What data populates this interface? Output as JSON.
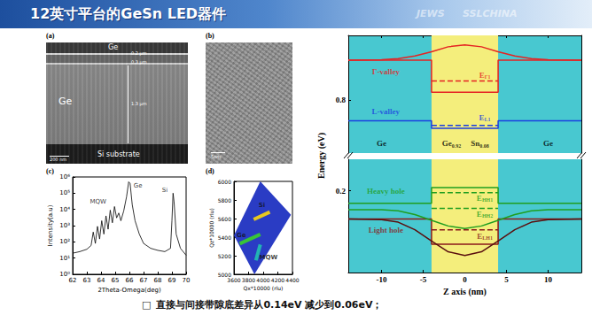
{
  "header": {
    "title": "12英寸平台的GeSn LED器件",
    "watermarks": [
      "JEWS",
      "SSLCHINA"
    ]
  },
  "panels": {
    "a": {
      "label": "(a)",
      "layer_top": "Ge",
      "layer_main": "Ge",
      "substrate": "Si substrate",
      "thickness": [
        "0.2 μm",
        "0.3 μm",
        "1.3 μm"
      ],
      "scale_bar": "200 nm"
    },
    "b": {
      "label": "(b)",
      "scale_bar": "5nm"
    },
    "c": {
      "label": "(c)"
    },
    "d": {
      "label": "(d)"
    }
  },
  "chart_data": [
    {
      "type": "line",
      "xlabel": "2Theta-Omega(deg)",
      "ylabel": "Intensity(a.u)",
      "log": "y",
      "color": "#000000",
      "grid": false,
      "x": [
        62,
        62.5,
        63,
        63.3,
        63.45,
        63.6,
        63.75,
        63.9,
        64.05,
        64.2,
        64.35,
        64.5,
        64.65,
        64.8,
        64.95,
        65.1,
        65.25,
        65.4,
        65.6,
        65.8,
        65.95,
        66.05,
        66.2,
        66.4,
        66.7,
        67,
        67.5,
        68,
        68.5,
        68.9,
        69,
        69.08,
        69.15,
        69.3,
        69.6,
        70
      ],
      "values": [
        20,
        25,
        35,
        60,
        400,
        80,
        900,
        150,
        2000,
        300,
        4000,
        600,
        9000,
        1500,
        15000,
        3000,
        6000,
        2000,
        8000,
        60000,
        500000,
        400000,
        20000,
        2000,
        300,
        80,
        40,
        30,
        25,
        40,
        2000,
        100000,
        30000,
        300,
        40,
        15
      ],
      "xlim": [
        62,
        70
      ],
      "xticks": [
        62,
        63,
        64,
        65,
        66,
        67,
        68,
        69,
        70
      ],
      "ylim": [
        1,
        1000000
      ],
      "yticks": [
        {
          "value": 1,
          "label": "10⁰"
        },
        {
          "value": 10,
          "label": "10¹"
        },
        {
          "value": 100,
          "label": "10²"
        },
        {
          "value": 1000,
          "label": "10³"
        },
        {
          "value": 10000,
          "label": "10⁴"
        },
        {
          "value": 100000,
          "label": "10⁵"
        },
        {
          "value": 1000000,
          "label": "10⁶"
        }
      ],
      "annotations": [
        {
          "text": "MQW",
          "x": 63.8,
          "y": 30000
        },
        {
          "text": "Ge",
          "x": 66.6,
          "y": 300000
        },
        {
          "text": "Si",
          "x": 68.5,
          "y": 150000
        }
      ]
    },
    {
      "type": "map",
      "xlabel": "Qx*10000 (rlu)",
      "ylabel": "Qz*10000 (rlu)",
      "grid": false,
      "xlim": [
        3600,
        4400
      ],
      "xticks": [
        3600,
        3800,
        4000,
        4200,
        4400
      ],
      "ylim": [
        5000,
        6000
      ],
      "yticks": [
        5000,
        5200,
        5400,
        5600,
        5800,
        6000
      ],
      "region": {
        "color": "#2a3cc4",
        "points": [
          [
            3600,
            5420
          ],
          [
            3960,
            6000
          ],
          [
            4380,
            5640
          ],
          [
            3880,
            5000
          ]
        ]
      },
      "features": [
        {
          "text": "Si",
          "color": "#e8c820",
          "points": [
            [
              3870,
              5590
            ],
            [
              4090,
              5670
            ]
          ],
          "x": 3980,
          "y": 5740
        },
        {
          "text": "Ge",
          "color": "#38c438",
          "points": [
            [
              3680,
              5330
            ],
            [
              3960,
              5430
            ]
          ],
          "x": 3700,
          "y": 5420
        },
        {
          "text": "MQW",
          "color": "#22b4b4",
          "points": [
            [
              3900,
              5150
            ],
            [
              3960,
              5320
            ]
          ],
          "x": 4070,
          "y": 5180
        }
      ]
    },
    {
      "type": "band",
      "xlabel": "Z axis (nm)",
      "ylabel": "Energy (eV)",
      "background": "#48c8d0",
      "xlim": [
        -14,
        14
      ],
      "xticks": [
        -10,
        -5,
        0,
        5,
        10
      ],
      "well": {
        "x": [
          -4,
          4
        ],
        "color": "#f4ee7c"
      },
      "panels": [
        {
          "ylim": [
            0.66,
            0.97
          ],
          "yticks": [
            0.8
          ],
          "series": [
            {
              "color": "#e52222",
              "line_style": "solid",
              "points": [
                [
                  -14,
                  0.905
                ],
                [
                  -4,
                  0.905
                ],
                [
                  -4,
                  0.82
                ],
                [
                  4,
                  0.82
                ],
                [
                  4,
                  0.905
                ],
                [
                  14,
                  0.905
                ]
              ]
            },
            {
              "color": "#1a3ee0",
              "line_style": "solid",
              "points": [
                [
                  -14,
                  0.745
                ],
                [
                  -4,
                  0.745
                ],
                [
                  -4,
                  0.725
                ],
                [
                  4,
                  0.725
                ],
                [
                  4,
                  0.745
                ],
                [
                  14,
                  0.745
                ]
              ]
            },
            {
              "color": "#e52222",
              "line_style": "solid",
              "points": [
                [
                  -14,
                  0.905
                ],
                [
                  -10,
                  0.906
                ],
                [
                  -8,
                  0.909
                ],
                [
                  -6,
                  0.916
                ],
                [
                  -4,
                  0.927
                ],
                [
                  -2,
                  0.94
                ],
                [
                  0,
                  0.945
                ],
                [
                  2,
                  0.94
                ],
                [
                  4,
                  0.927
                ],
                [
                  6,
                  0.916
                ],
                [
                  8,
                  0.909
                ],
                [
                  10,
                  0.906
                ],
                [
                  14,
                  0.905
                ]
              ]
            },
            {
              "color": "#e52222",
              "line_style": "dashed",
              "points": [
                [
                  -4,
                  0.85
                ],
                [
                  4,
                  0.85
                ]
              ]
            },
            {
              "color": "#1a3ee0",
              "line_style": "dashed",
              "points": [
                [
                  -4,
                  0.733
                ],
                [
                  4,
                  0.733
                ]
              ]
            }
          ],
          "annotations": [
            {
              "text": "Γ-valley",
              "color": "#e52222",
              "x": -9.5,
              "y": 0.875
            },
            {
              "text": "L-valley",
              "color": "#1a3ee0",
              "x": -9.5,
              "y": 0.77
            },
            {
              "text": "E",
              "sub": "Γ1",
              "color": "#e52222",
              "x": 2.4,
              "y": 0.865
            },
            {
              "text": "E",
              "sub": "L1",
              "color": "#1a3ee0",
              "x": 2.4,
              "y": 0.754
            },
            {
              "text": "Ge",
              "color": "#000000",
              "x": -10,
              "y": 0.685
            },
            {
              "text": "Ge",
              "color": "#000000",
              "x": 10,
              "y": 0.685
            },
            {
              "text": "Ge",
              "sub": "0.92",
              "color": "#000000",
              "x": -1.6,
              "y": 0.685
            },
            {
              "text": "Sn",
              "sub": "0.08",
              "color": "#000000",
              "x": 1.8,
              "y": 0.685
            }
          ]
        },
        {
          "ylim": [
            0.07,
            0.25
          ],
          "yticks": [
            0.2
          ],
          "series": [
            {
              "color": "#1f9e1f",
              "line_style": "solid",
              "points": [
                [
                  -14,
                  0.18
                ],
                [
                  -4,
                  0.18
                ],
                [
                  -4,
                  0.205
                ],
                [
                  4,
                  0.205
                ],
                [
                  4,
                  0.18
                ],
                [
                  14,
                  0.18
                ]
              ]
            },
            {
              "color": "#8b1a1a",
              "line_style": "solid",
              "points": [
                [
                  -14,
                  0.155
                ],
                [
                  -4,
                  0.155
                ],
                [
                  -4,
                  0.115
                ],
                [
                  4,
                  0.115
                ],
                [
                  4,
                  0.155
                ],
                [
                  14,
                  0.155
                ]
              ]
            },
            {
              "color": "#1f9e1f",
              "line_style": "solid",
              "points": [
                [
                  -14,
                  0.17
                ],
                [
                  -10,
                  0.17
                ],
                [
                  -8,
                  0.168
                ],
                [
                  -6,
                  0.162
                ],
                [
                  -4,
                  0.153
                ],
                [
                  -2,
                  0.144
                ],
                [
                  0,
                  0.14
                ],
                [
                  2,
                  0.144
                ],
                [
                  4,
                  0.153
                ],
                [
                  6,
                  0.162
                ],
                [
                  8,
                  0.168
                ],
                [
                  10,
                  0.17
                ],
                [
                  14,
                  0.17
                ]
              ]
            },
            {
              "color": "#5a0f0f",
              "line_style": "solid",
              "points": [
                [
                  -14,
                  0.155
                ],
                [
                  -10,
                  0.154
                ],
                [
                  -8,
                  0.15
                ],
                [
                  -6,
                  0.138
                ],
                [
                  -4,
                  0.12
                ],
                [
                  -2,
                  0.103
                ],
                [
                  0,
                  0.097
                ],
                [
                  2,
                  0.103
                ],
                [
                  4,
                  0.12
                ],
                [
                  6,
                  0.138
                ],
                [
                  8,
                  0.15
                ],
                [
                  10,
                  0.154
                ],
                [
                  14,
                  0.155
                ]
              ]
            },
            {
              "color": "#1f9e1f",
              "line_style": "dashed",
              "points": [
                [
                  -4,
                  0.197
                ],
                [
                  4,
                  0.197
                ]
              ]
            },
            {
              "color": "#1f9e1f",
              "line_style": "dashed",
              "points": [
                [
                  -4,
                  0.172
                ],
                [
                  4,
                  0.172
                ]
              ]
            },
            {
              "color": "#8b1a1a",
              "line_style": "dashed",
              "points": [
                [
                  -4,
                  0.138
                ],
                [
                  4,
                  0.138
                ]
              ]
            }
          ],
          "annotations": [
            {
              "text": "Heavy hole",
              "color": "#1f9e1f",
              "x": -9.5,
              "y": 0.2
            },
            {
              "text": "Light hole",
              "color": "#8b1a1a",
              "x": -9.5,
              "y": 0.137
            },
            {
              "text": "E",
              "sub": "HH1",
              "color": "#1f9e1f",
              "x": 2.4,
              "y": 0.188
            },
            {
              "text": "E",
              "sub": "HH2",
              "color": "#1f9e1f",
              "x": 2.4,
              "y": 0.163
            },
            {
              "text": "E",
              "sub": "LH1",
              "color": "#8b1a1a",
              "x": 2.4,
              "y": 0.128
            }
          ]
        }
      ]
    }
  ],
  "caption": {
    "bullet": "□",
    "text": "直接与间接带隙底差异从0.14eV 减少到0.06eV；"
  }
}
